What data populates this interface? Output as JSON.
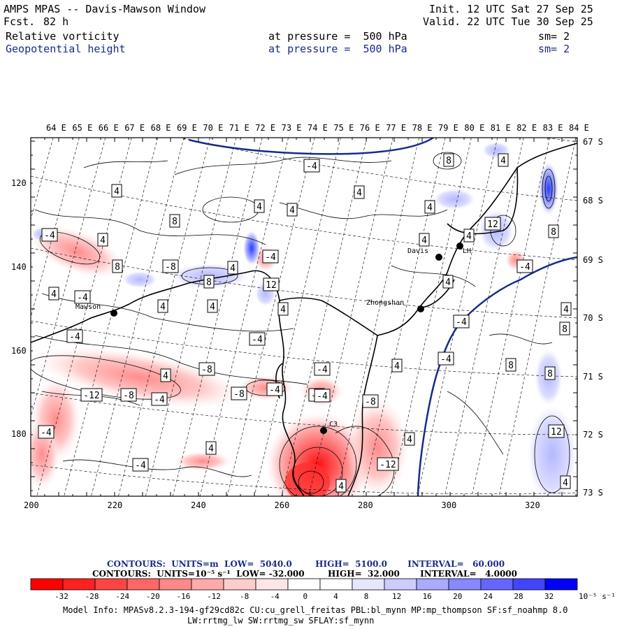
{
  "header": {
    "title": "AMPS MPAS -- Davis-Mawson Window",
    "forecast_label": "Fcst.",
    "forecast_hours": "82 h",
    "init": "Init. 12 UTC Sat 27 Sep 25",
    "valid": "Valid. 22 UTC Tue 30 Sep 25",
    "field1": "Relative vorticity",
    "field2": "Geopotential height",
    "pressure1": "at pressure =  500 hPa",
    "pressure2": "at pressure =  500 hPa",
    "sm1": "sm= 2",
    "sm2": "sm= 2"
  },
  "axes": {
    "top_lon_labels": [
      "64 E",
      "65 E",
      "66 E",
      "67 E",
      "68 E",
      "69 E",
      "70 E",
      "71 E",
      "72 E",
      "73 E",
      "74 E",
      "75 E",
      "76 E",
      "77 E",
      "78 E",
      "79 E",
      "80 E",
      "81 E",
      "82 E",
      "83 E",
      "84 E"
    ],
    "right_lat_labels": [
      "67 S",
      "68 S",
      "69 S",
      "70 S",
      "71 S",
      "72 S",
      "73 S"
    ],
    "left_y_ticks": [
      "120",
      "140",
      "160",
      "180"
    ],
    "bottom_x_ticks": [
      "200",
      "220",
      "240",
      "260",
      "280",
      "300",
      "320"
    ]
  },
  "stations": [
    {
      "name": "Mawson"
    },
    {
      "name": "Davis"
    },
    {
      "name": "Zhongshan"
    },
    {
      "name": "LH"
    },
    {
      "name": "C3"
    }
  ],
  "contour_labels": [
    "-4",
    "4",
    "4",
    "4",
    "4",
    "8",
    "-4",
    "4",
    "8",
    "-8",
    "4",
    "-4",
    "8",
    "12",
    "4",
    "4",
    "4",
    "4",
    "-4",
    "-4",
    "-4",
    "4",
    "-8",
    "-12",
    "-8",
    "-4",
    "-8",
    "-4",
    "-8",
    "-4",
    "-8",
    "-4",
    "4",
    "-4",
    "4",
    "-12",
    "-4",
    "4",
    "12",
    "-4",
    "8",
    "8",
    "4",
    "4",
    "4",
    "8",
    "4",
    "4",
    "-4",
    "8",
    "12",
    "4",
    "4",
    "4",
    "8",
    "-4"
  ],
  "legend": {
    "contours1": "CONTOURS:  UNITS=m  LOW=  5040.0        HIGH=  5100.0       INTERVAL=   60.000",
    "contours2": "CONTOURS:  UNITS=10⁻⁵ s⁻¹  LOW= -32.000        HIGH=  32.000       INTERVAL=   4.0000",
    "colorbar_labels": [
      "-32",
      "-28",
      "-24",
      "-20",
      "-16",
      "-12",
      "-8",
      "-4",
      "0",
      "4",
      "8",
      "12",
      "16",
      "20",
      "24",
      "28",
      "32"
    ],
    "colorbar_unit": "10⁻⁵ s⁻¹",
    "colors": [
      "#ff0000",
      "#ff2020",
      "#ff4444",
      "#ff6666",
      "#ff8888",
      "#ffaaaa",
      "#ffcccc",
      "#ffe6e6",
      "#ffffff",
      "#ffffff",
      "#e6e6ff",
      "#ccccff",
      "#aaaaff",
      "#8888ff",
      "#6666ff",
      "#4444ff",
      "#0000ff"
    ]
  },
  "footer": {
    "line1": "Model Info: MPASv8.2.3-194-gf29cd82c CU:cu_grell_freitas PBL:bl_mynn MP:mp_thompson SF:sf_noahmp 8.0",
    "line2": "LW:rrtmg_lw SW:rrtmg_sw SFLAY:sf_mynn"
  }
}
